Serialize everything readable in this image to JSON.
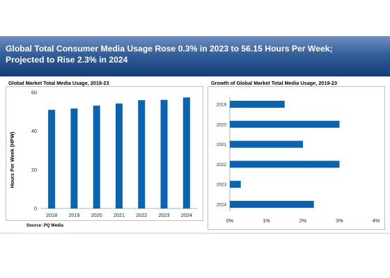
{
  "header": {
    "title_line1": "Global Total Consumer Media Usage Rose 0.3% in 2023 to 56.15 Hours Per Week;",
    "title_line2": "Projected to Rise 2.3% in 2024"
  },
  "left_panel": {
    "title": "Global Market Total Media Usage, 2018-23"
  },
  "right_panel": {
    "title": "Growth of Global Market Total Media Usage, 2019-23"
  },
  "source": "Source: PQ Media",
  "colors": {
    "bar": "#0a64b4",
    "banner_dark": "#123d79",
    "banner_light": "#6d8fc0"
  },
  "chart_data": [
    {
      "type": "bar",
      "title": "Global Market Total Media Usage, 2018-23",
      "categories": [
        "2018",
        "2019",
        "2020",
        "2021",
        "2022",
        "2023",
        "2024"
      ],
      "values": [
        51.0,
        51.7,
        53.2,
        54.3,
        56.0,
        56.15,
        57.4
      ],
      "xlabel": "",
      "ylabel": "Hours Per Week (HPW)",
      "ylim": [
        0,
        60
      ],
      "yticks": [
        "0",
        "20",
        "40",
        "60"
      ],
      "grid": false
    },
    {
      "type": "bar",
      "orientation": "horizontal",
      "title": "Growth of Global Market Total Media Usage, 2019-23",
      "categories": [
        "2019",
        "2020",
        "2021",
        "2022",
        "2023",
        "2024"
      ],
      "values": [
        1.5,
        3.0,
        2.0,
        3.0,
        0.3,
        2.3
      ],
      "unit": "%",
      "xlim": [
        0,
        4
      ],
      "xticks": [
        "0%",
        "1%",
        "2%",
        "3%",
        "4%"
      ],
      "grid": false
    }
  ]
}
